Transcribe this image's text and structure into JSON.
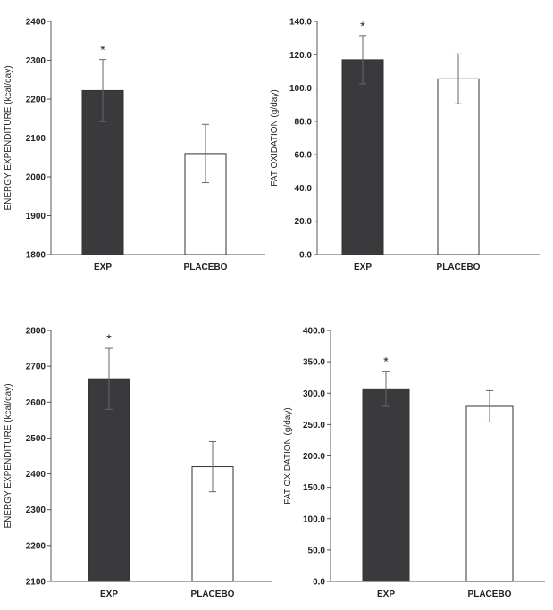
{
  "chart_data": [
    {
      "type": "bar",
      "title": "",
      "xlabel": "",
      "ylabel": "ENERGY EXPENDITURE (kcal/day)",
      "categories": [
        "EXP",
        "PLACEBO"
      ],
      "values": [
        2222,
        2060
      ],
      "errors": [
        80,
        75
      ],
      "significance": [
        "*",
        ""
      ],
      "ylim": [
        1800,
        2400
      ],
      "yticks": [
        1800,
        1900,
        2000,
        2100,
        2200,
        2300,
        2400
      ],
      "tick_labels": [
        "1800",
        "1900",
        "2000",
        "2100",
        "2200",
        "2300",
        "2400"
      ],
      "colors": [
        "#3a3a3d",
        "#ffffff"
      ]
    },
    {
      "type": "bar",
      "title": "",
      "xlabel": "",
      "ylabel": "FAT OXIDATION (g/day)",
      "categories": [
        "EXP",
        "PLACEBO"
      ],
      "values": [
        117,
        105.5
      ],
      "errors": [
        14.5,
        15
      ],
      "significance": [
        "*",
        ""
      ],
      "ylim": [
        0,
        140
      ],
      "yticks": [
        0,
        20,
        40,
        60,
        80,
        100,
        120,
        140
      ],
      "tick_labels": [
        "0.0",
        "20.0",
        "40.0",
        "60.0",
        "80.0",
        "100.0",
        "120.0",
        "140.0"
      ],
      "colors": [
        "#3a3a3d",
        "#ffffff"
      ]
    },
    {
      "type": "bar",
      "title": "",
      "xlabel": "",
      "ylabel": "ENERGY EXPENDITURE (kcal/day)",
      "categories": [
        "EXP",
        "PLACEBO"
      ],
      "values": [
        2665,
        2420
      ],
      "errors": [
        85,
        70
      ],
      "significance": [
        "*",
        ""
      ],
      "ylim": [
        2100,
        2800
      ],
      "yticks": [
        2100,
        2200,
        2300,
        2400,
        2500,
        2600,
        2700,
        2800
      ],
      "tick_labels": [
        "2100",
        "2200",
        "2300",
        "2400",
        "2500",
        "2600",
        "2700",
        "2800"
      ],
      "colors": [
        "#3a3a3d",
        "#ffffff"
      ]
    },
    {
      "type": "bar",
      "title": "",
      "xlabel": "",
      "ylabel": "FAT OXIDATION (g/day)",
      "categories": [
        "EXP",
        "PLACEBO"
      ],
      "values": [
        307,
        279
      ],
      "errors": [
        28,
        25
      ],
      "significance": [
        "*",
        ""
      ],
      "ylim": [
        0,
        400
      ],
      "yticks": [
        0,
        50,
        100,
        150,
        200,
        250,
        300,
        350,
        400
      ],
      "tick_labels": [
        "0.0",
        "50.0",
        "100.0",
        "150.0",
        "200.0",
        "250.0",
        "300.0",
        "350.0",
        "400.0"
      ],
      "colors": [
        "#3a3a3d",
        "#ffffff"
      ]
    }
  ]
}
